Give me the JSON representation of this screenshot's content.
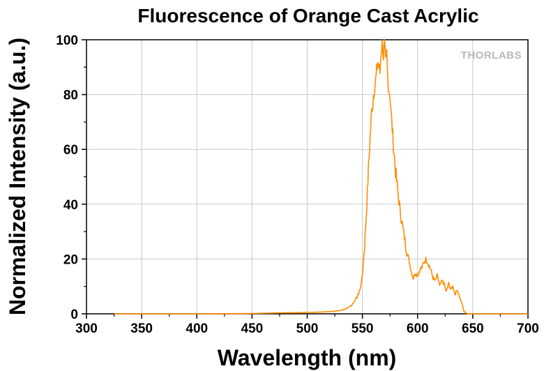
{
  "chart_data": {
    "type": "line",
    "title": "Fluorescence of Orange Cast Acrylic",
    "xlabel": "Wavelength (nm)",
    "ylabel": "Normalized Intensity (a.u.)",
    "xlim": [
      300,
      700
    ],
    "ylim": [
      0,
      100
    ],
    "x_ticks": [
      300,
      350,
      400,
      450,
      500,
      550,
      600,
      650,
      700
    ],
    "y_ticks": [
      0,
      20,
      40,
      60,
      80,
      100
    ],
    "grid": true,
    "series": [
      {
        "color": "#FF8C00",
        "x": [
          325,
          350,
          400,
          450,
          470,
          480,
          490,
          500,
          510,
          520,
          530,
          535,
          540,
          545,
          548,
          550,
          552,
          554,
          556,
          558,
          560,
          562,
          564,
          566,
          567,
          568,
          569,
          570,
          571,
          572,
          573,
          574,
          575,
          576,
          578,
          580,
          582,
          584,
          586,
          588,
          590,
          592,
          594,
          596,
          598,
          600,
          602,
          604,
          606,
          608,
          610,
          612,
          614,
          616,
          618,
          620,
          622,
          624,
          626,
          628,
          630,
          632,
          634,
          636,
          638,
          640,
          642,
          645,
          650,
          700
        ],
        "y": [
          0,
          0,
          0,
          0.1,
          0.3,
          0.4,
          0.4,
          0.5,
          0.6,
          0.8,
          1.2,
          1.8,
          3,
          6,
          9,
          14,
          25,
          40,
          57,
          72,
          80,
          85,
          92,
          88,
          96,
          100,
          94,
          98,
          91,
          95,
          86,
          82,
          80,
          73,
          62,
          52,
          45,
          38,
          33,
          28,
          23,
          20,
          16,
          13,
          15,
          14,
          16,
          17,
          19,
          20,
          18,
          16,
          13,
          12,
          14,
          10,
          12,
          11,
          8,
          11,
          9,
          10,
          7,
          9,
          6,
          4,
          1,
          0,
          0,
          0
        ]
      }
    ]
  },
  "logo": {
    "text": "THORLABS"
  }
}
